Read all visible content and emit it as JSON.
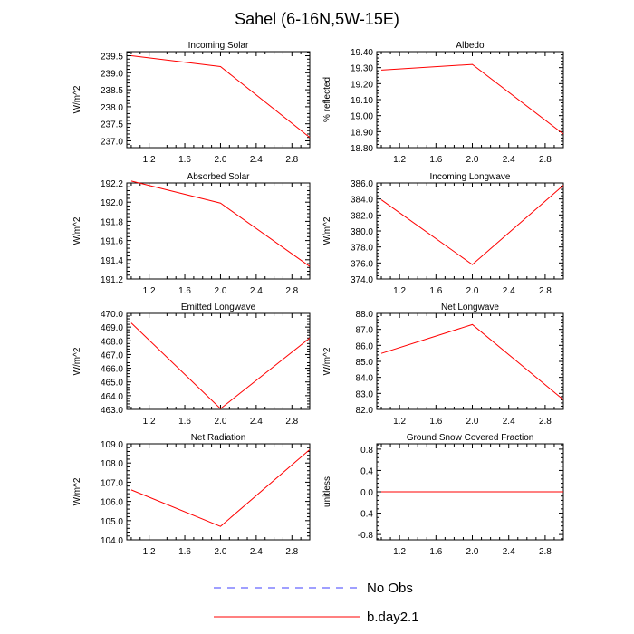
{
  "figure": {
    "title": "Sahel (6-16N,5W-15E)",
    "line_color": "#ff0000",
    "obs_color": "#3f3fff"
  },
  "legend": {
    "items": [
      {
        "label": "No Obs",
        "style": "dashed",
        "color": "#3f3fff"
      },
      {
        "label": "b.day2.1",
        "style": "solid",
        "color": "#ff0000"
      }
    ]
  },
  "chart_data": [
    {
      "type": "line",
      "title": "Incoming Solar",
      "ylabel": "W/m^2",
      "xlim": [
        0.95,
        3.0
      ],
      "xticks": [
        "1.2",
        "1.6",
        "2.0",
        "2.4",
        "2.8"
      ],
      "ylim": [
        236.8,
        239.62
      ],
      "yticks": [
        "237.0",
        "237.5",
        "238.0",
        "238.5",
        "239.0",
        "239.5"
      ],
      "series": [
        {
          "name": "b.day2.1",
          "x": [
            1,
            2,
            3
          ],
          "y": [
            239.5,
            239.18,
            237.1
          ]
        }
      ]
    },
    {
      "type": "line",
      "title": "Albedo",
      "ylabel": "% reflected",
      "xlim": [
        0.95,
        3.0
      ],
      "xticks": [
        "1.2",
        "1.6",
        "2.0",
        "2.4",
        "2.8"
      ],
      "ylim": [
        18.8,
        19.4
      ],
      "yticks": [
        "18.80",
        "18.90",
        "19.00",
        "19.10",
        "19.20",
        "19.30",
        "19.40"
      ],
      "series": [
        {
          "name": "b.day2.1",
          "x": [
            1,
            2,
            3
          ],
          "y": [
            19.285,
            19.32,
            18.885
          ]
        }
      ]
    },
    {
      "type": "line",
      "title": "Absorbed Solar",
      "ylabel": "W/m^2",
      "xlim": [
        0.95,
        3.0
      ],
      "xticks": [
        "1.2",
        "1.6",
        "2.0",
        "2.4",
        "2.8"
      ],
      "ylim": [
        191.2,
        192.2
      ],
      "yticks": [
        "191.2",
        "191.4",
        "191.6",
        "191.8",
        "192.0",
        "192.2"
      ],
      "series": [
        {
          "name": "b.day2.1",
          "x": [
            1,
            2,
            3
          ],
          "y": [
            192.22,
            191.99,
            191.33
          ]
        }
      ]
    },
    {
      "type": "line",
      "title": "Incoming Longwave",
      "ylabel": "W/m^2",
      "xlim": [
        0.95,
        3.0
      ],
      "xticks": [
        "1.2",
        "1.6",
        "2.0",
        "2.4",
        "2.8"
      ],
      "ylim": [
        374.0,
        386.0
      ],
      "yticks": [
        "374.0",
        "376.0",
        "378.0",
        "380.0",
        "382.0",
        "384.0",
        "386.0"
      ],
      "series": [
        {
          "name": "b.day2.1",
          "x": [
            1,
            2,
            3
          ],
          "y": [
            383.9,
            375.8,
            385.7
          ]
        }
      ]
    },
    {
      "type": "line",
      "title": "Emitted Longwave",
      "ylabel": "W/m^2",
      "xlim": [
        0.95,
        3.0
      ],
      "xticks": [
        "1.2",
        "1.6",
        "2.0",
        "2.4",
        "2.8"
      ],
      "ylim": [
        463.0,
        470.0
      ],
      "yticks": [
        "463.0",
        "464.0",
        "465.0",
        "466.0",
        "467.0",
        "468.0",
        "469.0",
        "470.0"
      ],
      "series": [
        {
          "name": "b.day2.1",
          "x": [
            1,
            2,
            3
          ],
          "y": [
            469.3,
            463.05,
            468.2
          ]
        }
      ]
    },
    {
      "type": "line",
      "title": "Net Longwave",
      "ylabel": "W/m^2",
      "xlim": [
        0.95,
        3.0
      ],
      "xticks": [
        "1.2",
        "1.6",
        "2.0",
        "2.4",
        "2.8"
      ],
      "ylim": [
        82.0,
        88.0
      ],
      "yticks": [
        "82.0",
        "83.0",
        "84.0",
        "85.0",
        "86.0",
        "87.0",
        "88.0"
      ],
      "series": [
        {
          "name": "b.day2.1",
          "x": [
            1,
            2,
            3
          ],
          "y": [
            85.5,
            87.3,
            82.6
          ]
        }
      ]
    },
    {
      "type": "line",
      "title": "Net Radiation",
      "ylabel": "W/m^2",
      "xlim": [
        0.95,
        3.0
      ],
      "xticks": [
        "1.2",
        "1.6",
        "2.0",
        "2.4",
        "2.8"
      ],
      "ylim": [
        104.0,
        109.0
      ],
      "yticks": [
        "104.0",
        "105.0",
        "106.0",
        "107.0",
        "108.0",
        "109.0"
      ],
      "series": [
        {
          "name": "b.day2.1",
          "x": [
            1,
            2,
            3
          ],
          "y": [
            106.6,
            104.7,
            108.7
          ]
        }
      ]
    },
    {
      "type": "line",
      "title": "Ground Snow Covered Fraction",
      "ylabel": "unitless",
      "xlim": [
        0.95,
        3.0
      ],
      "xticks": [
        "1.2",
        "1.6",
        "2.0",
        "2.4",
        "2.8"
      ],
      "ylim": [
        -0.9,
        0.9
      ],
      "yticks": [
        "-0.8",
        "-0.4",
        "0.0",
        "0.4",
        "0.8"
      ],
      "series": [
        {
          "name": "b.day2.1",
          "x": [
            1,
            2,
            3
          ],
          "y": [
            0.0,
            0.0,
            0.0
          ]
        }
      ]
    }
  ]
}
